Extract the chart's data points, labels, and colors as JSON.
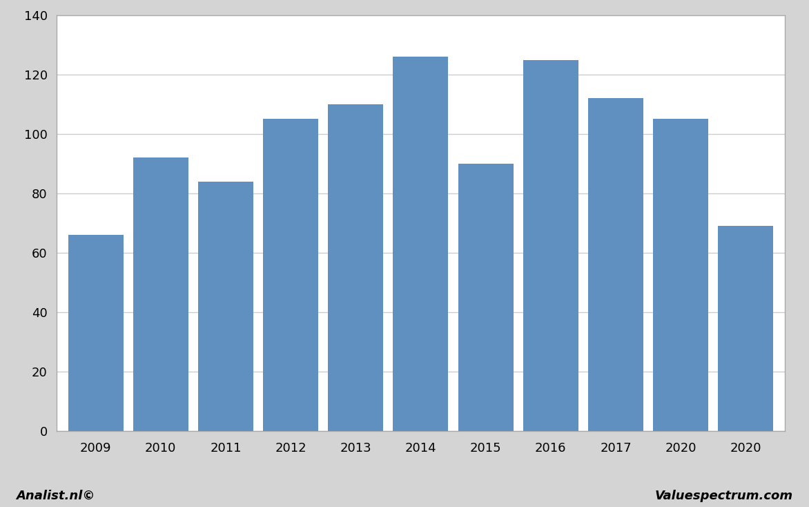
{
  "categories": [
    "2009",
    "2010",
    "2011",
    "2012",
    "2013",
    "2014",
    "2015",
    "2016",
    "2017",
    "2020",
    "2020"
  ],
  "values": [
    66,
    92,
    84,
    105,
    110,
    126,
    90,
    125,
    112,
    105,
    69
  ],
  "bar_color": "#6090c0",
  "ylim": [
    0,
    140
  ],
  "yticks": [
    0,
    20,
    40,
    60,
    80,
    100,
    120,
    140
  ],
  "grid_color": "#cccccc",
  "figure_background": "#d4d4d4",
  "plot_background": "#ffffff",
  "label_left": "Analist.nl©",
  "label_right": "Valuespectrum.com",
  "bar_width": 0.85,
  "border_color": "#aaaaaa"
}
